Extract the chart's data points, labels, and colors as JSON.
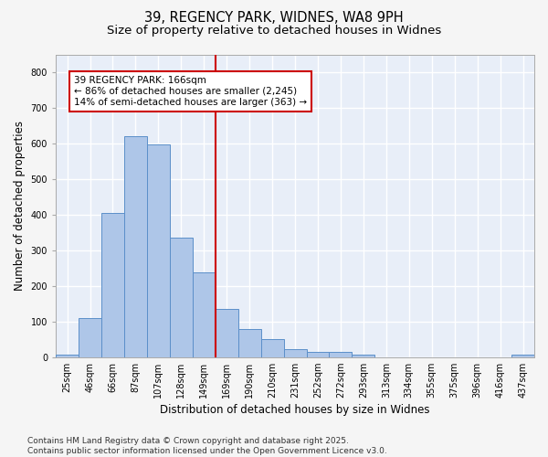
{
  "title": "39, REGENCY PARK, WIDNES, WA8 9PH",
  "subtitle": "Size of property relative to detached houses in Widnes",
  "xlabel": "Distribution of detached houses by size in Widnes",
  "ylabel": "Number of detached properties",
  "categories": [
    "25sqm",
    "46sqm",
    "66sqm",
    "87sqm",
    "107sqm",
    "128sqm",
    "149sqm",
    "169sqm",
    "190sqm",
    "210sqm",
    "231sqm",
    "252sqm",
    "272sqm",
    "293sqm",
    "313sqm",
    "334sqm",
    "355sqm",
    "375sqm",
    "396sqm",
    "416sqm",
    "437sqm"
  ],
  "values": [
    8,
    110,
    405,
    620,
    597,
    335,
    238,
    135,
    78,
    50,
    22,
    15,
    15,
    8,
    0,
    0,
    0,
    0,
    0,
    0,
    8
  ],
  "bar_color": "#aec6e8",
  "bar_edge_color": "#5b8fc9",
  "vline_index": 7,
  "annotation_text": "39 REGENCY PARK: 166sqm\n← 86% of detached houses are smaller (2,245)\n14% of semi-detached houses are larger (363) →",
  "annotation_box_color": "#ffffff",
  "annotation_box_edge_color": "#cc0000",
  "vline_color": "#cc0000",
  "ylim": [
    0,
    850
  ],
  "yticks": [
    0,
    100,
    200,
    300,
    400,
    500,
    600,
    700,
    800
  ],
  "bg_color": "#e8eef8",
  "plot_bg_color": "#eef2fa",
  "grid_color": "#ffffff",
  "fig_bg_color": "#f5f5f5",
  "footer": "Contains HM Land Registry data © Crown copyright and database right 2025.\nContains public sector information licensed under the Open Government Licence v3.0.",
  "title_fontsize": 10.5,
  "subtitle_fontsize": 9.5,
  "axis_label_fontsize": 8.5,
  "tick_fontsize": 7,
  "footer_fontsize": 6.5,
  "annotation_fontsize": 7.5
}
